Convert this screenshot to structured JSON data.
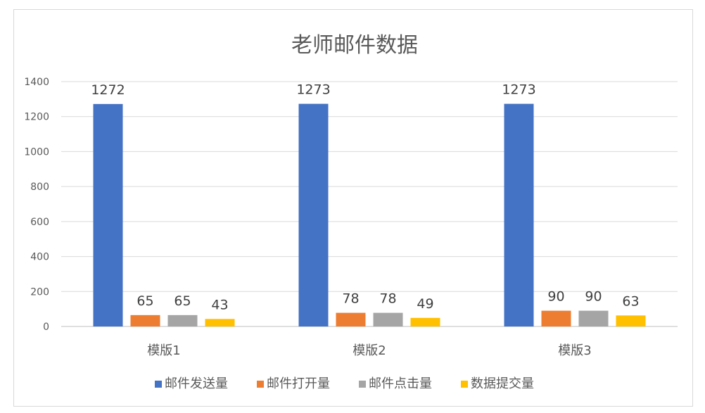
{
  "chart_data": {
    "type": "bar",
    "title": "老师邮件数据",
    "xlabel": "",
    "ylabel": "",
    "categories": [
      "模版1",
      "模版2",
      "模版3"
    ],
    "series": [
      {
        "name": "邮件发送量",
        "values": [
          1272,
          1273,
          1273
        ],
        "color": "#4472C4"
      },
      {
        "name": "邮件打开量",
        "values": [
          65,
          78,
          90
        ],
        "color": "#ED7D31"
      },
      {
        "name": "邮件点击量",
        "values": [
          65,
          78,
          90
        ],
        "color": "#A5A5A5"
      },
      {
        "name": "数据提交量",
        "values": [
          43,
          49,
          63
        ],
        "color": "#FFC000"
      }
    ],
    "ylim": [
      0,
      1400
    ],
    "yticks": [
      0,
      200,
      400,
      600,
      800,
      1000,
      1200,
      1400
    ],
    "grid": true,
    "legend": "bottom",
    "data_labels": true
  }
}
